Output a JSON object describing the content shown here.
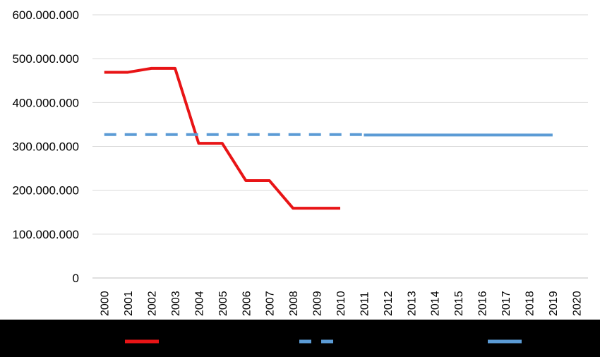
{
  "chart_data": {
    "type": "line",
    "x": [
      "2000",
      "2001",
      "2002",
      "2003",
      "2004",
      "2005",
      "2006",
      "2007",
      "2008",
      "2009",
      "2010",
      "2011",
      "2012",
      "2013",
      "2014",
      "2015",
      "2016",
      "2017",
      "2018",
      "2019",
      "2020"
    ],
    "y_ticks": [
      "0",
      "100.000.000",
      "200.000.000",
      "300.000.000",
      "400.000.000",
      "500.000.000",
      "600.000.000"
    ],
    "ylim": [
      0,
      600000000
    ],
    "grid": true,
    "legend": "bottom",
    "series": [
      {
        "color": "#e81416",
        "line_style": "solid",
        "x": [
          "2000",
          "2001",
          "2002",
          "2003",
          "2004",
          "2005",
          "2006",
          "2007",
          "2008",
          "2009",
          "2010"
        ],
        "values": [
          469000000,
          469000000,
          478000000,
          478000000,
          307000000,
          307000000,
          222000000,
          222000000,
          159000000,
          159000000,
          159000000
        ]
      },
      {
        "color": "#5b9bd5",
        "line_style": "dashed",
        "x": [
          "2000",
          "2011"
        ],
        "values": [
          327000000,
          327000000
        ]
      },
      {
        "color": "#5b9bd5",
        "line_style": "solid",
        "x": [
          "2011",
          "2019"
        ],
        "values": [
          326000000,
          326000000
        ]
      }
    ],
    "legend_band_color": "#000000"
  }
}
